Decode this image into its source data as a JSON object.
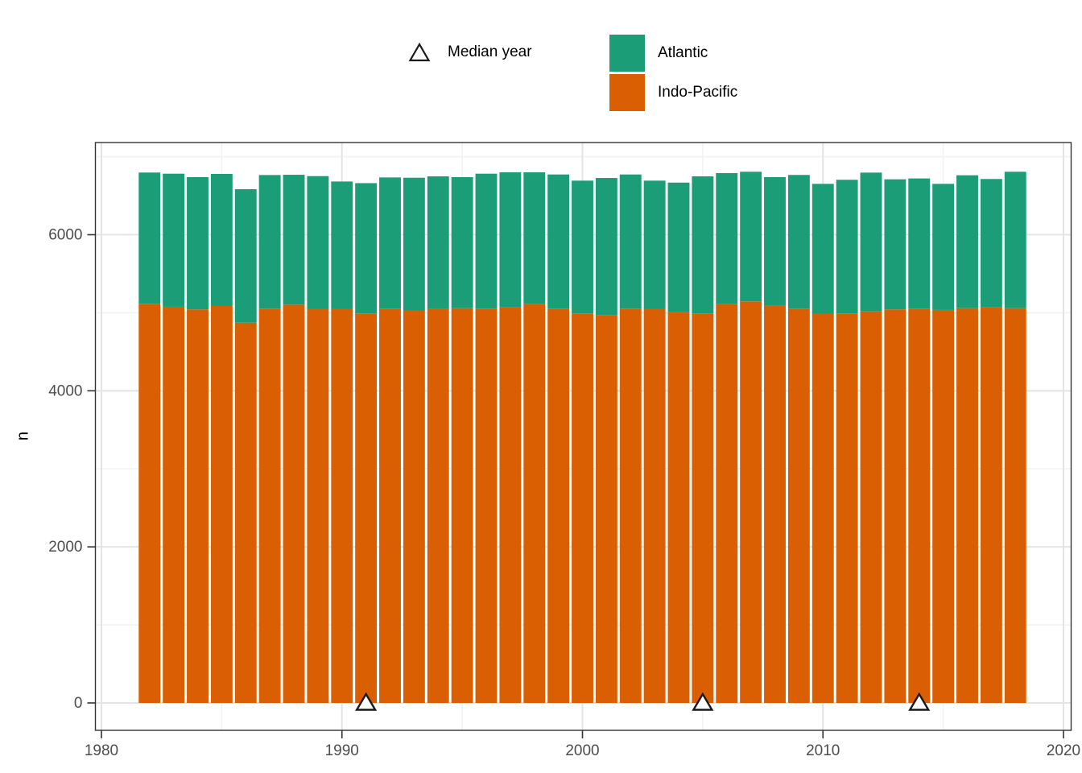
{
  "chart_data": {
    "type": "bar",
    "subtype": "stacked",
    "title": "",
    "xlabel": "",
    "ylabel": "n",
    "years": [
      1982,
      1983,
      1984,
      1985,
      1986,
      1987,
      1988,
      1989,
      1990,
      1991,
      1992,
      1993,
      1994,
      1995,
      1996,
      1997,
      1998,
      1999,
      2000,
      2001,
      2002,
      2003,
      2004,
      2005,
      2006,
      2007,
      2008,
      2009,
      2010,
      2011,
      2012,
      2013,
      2014,
      2015,
      2016,
      2017,
      2018
    ],
    "series": [
      {
        "name": "Indo-Pacific",
        "color": "#D95F02",
        "values": [
          5115,
          5077,
          5043,
          5087,
          4873,
          5053,
          5104,
          5046,
          5046,
          4991,
          5053,
          5030,
          5050,
          5059,
          5053,
          5070,
          5111,
          5053,
          4991,
          4966,
          5053,
          5046,
          5008,
          4991,
          5111,
          5146,
          5091,
          5053,
          4984,
          4991,
          5018,
          5043,
          5053,
          5036,
          5059,
          5070,
          5059
        ]
      },
      {
        "name": "Atlantic",
        "color": "#1B9E77",
        "values": [
          1682,
          1705,
          1695,
          1692,
          1710,
          1712,
          1664,
          1705,
          1636,
          1670,
          1681,
          1700,
          1698,
          1679,
          1729,
          1730,
          1689,
          1719,
          1702,
          1761,
          1719,
          1647,
          1660,
          1757,
          1679,
          1661,
          1647,
          1713,
          1668,
          1713,
          1778,
          1667,
          1668,
          1616,
          1703,
          1644,
          1748
        ]
      }
    ],
    "stack_order_bottom_to_top": [
      "Indo-Pacific",
      "Atlantic"
    ],
    "median_year_markers": [
      1991,
      2005,
      2014
    ],
    "x_ticks": [
      1980,
      1990,
      2000,
      2010,
      2020
    ],
    "y_ticks": [
      0,
      2000,
      4000,
      6000
    ],
    "x_minor_gridlines": [
      1985,
      1995,
      2005,
      2015
    ],
    "y_minor_gridlines": [
      1000,
      3000,
      5000,
      7000
    ],
    "xlim": [
      1979.7,
      2020.3
    ],
    "ylim": [
      -351,
      7181
    ],
    "bar_width_fraction": 0.9,
    "grid": true,
    "legend": {
      "position": "top",
      "median_label": "Median year",
      "entries": [
        {
          "label": "Atlantic",
          "color": "#1B9E77"
        },
        {
          "label": "Indo-Pacific",
          "color": "#D95F02"
        }
      ]
    },
    "colors": {
      "atlantic": "#1B9E77",
      "indo_pacific": "#D95F02",
      "grid_major": "#E4E4E4",
      "grid_minor": "#F3F3F3",
      "panel_border": "#333333",
      "tick_mark": "#333333",
      "tick_text": "#4D4D4D",
      "axis_title": "#000000",
      "marker_fill": "#FFFFFF",
      "marker_stroke": "#1A1A1A"
    }
  }
}
